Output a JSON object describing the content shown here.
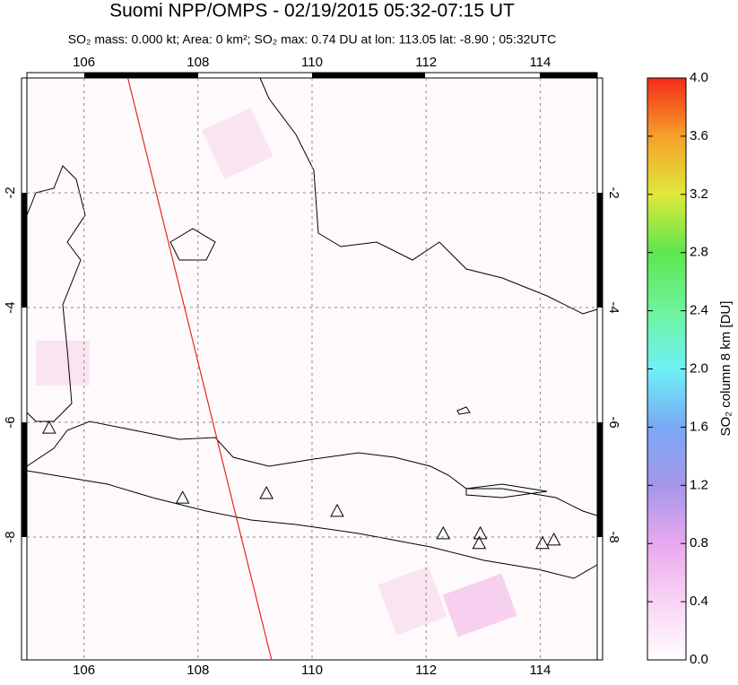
{
  "chart_data": {
    "type": "scatter",
    "title": "Suomi NPP/OMPS - 02/19/2015 05:32-07:15 UT",
    "subtitle": "SO₂ mass: 0.000 kt; Area: 0 km²; SO₂ max: 0.74 DU at lon: 113.05 lat: -8.90 ; 05:32UTC",
    "xlim": [
      105,
      115
    ],
    "ylim": [
      -10.14,
      0
    ],
    "xticks": [
      106,
      108,
      110,
      112,
      114
    ],
    "yticks": [
      -2,
      -4,
      -6,
      -8
    ],
    "grid": true,
    "x": [
      105.39,
      107.73,
      109.2,
      110.44,
      112.3,
      112.95,
      112.93,
      114.04,
      114.24
    ],
    "values": [
      -6.11,
      -7.33,
      -7.25,
      -7.56,
      -7.95,
      -7.95,
      -8.12,
      -8.12,
      -8.06
    ],
    "track": {
      "x": [
        106.77,
        109.29
      ],
      "y": [
        0,
        -10.14
      ],
      "color": "#e8251c"
    },
    "colorbar": {
      "label": "SO₂ column 8 km [DU]",
      "lim": [
        0,
        4
      ],
      "ticks": [
        {
          "value": 0,
          "label": "0.0"
        },
        {
          "value": 0.4,
          "label": "0.4"
        },
        {
          "value": 0.8,
          "label": "0.8"
        },
        {
          "value": 1.2,
          "label": "1.2"
        },
        {
          "value": 1.6,
          "label": "1.6"
        },
        {
          "value": 2,
          "label": "2.0"
        },
        {
          "value": 2.4,
          "label": "2.4"
        },
        {
          "value": 2.8,
          "label": "2.8"
        },
        {
          "value": 3.2,
          "label": "3.2"
        },
        {
          "value": 3.6,
          "label": "3.6"
        },
        {
          "value": 4,
          "label": "4.0"
        }
      ]
    }
  }
}
